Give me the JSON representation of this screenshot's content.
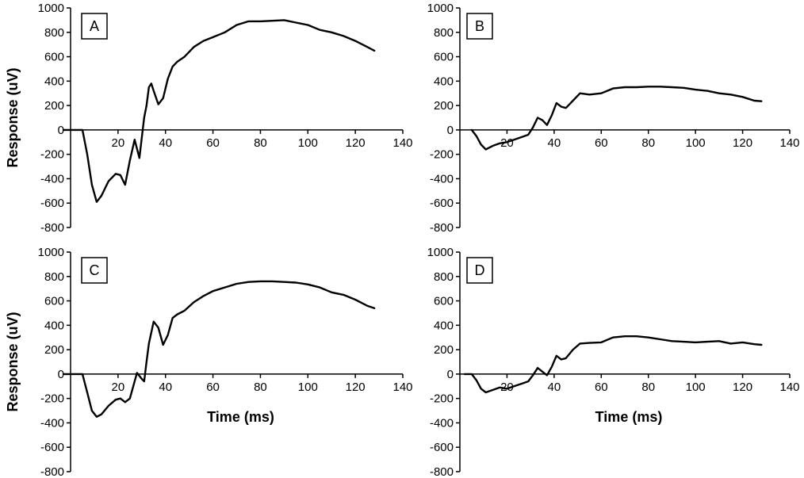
{
  "chart_data": [
    {
      "type": "line",
      "panel_label": "A",
      "ylabel": "Response (uV)",
      "xlabel": "",
      "xlim": [
        0,
        140
      ],
      "ylim": [
        -800,
        1000
      ],
      "xticks": [
        20,
        40,
        60,
        80,
        100,
        120,
        140
      ],
      "yticks": [
        -800,
        -600,
        -400,
        -200,
        0,
        200,
        400,
        600,
        800,
        1000
      ],
      "grid": false,
      "series": [
        {
          "x": [
            -3,
            2,
            5,
            7,
            9,
            11,
            13,
            16,
            19,
            21,
            23,
            25,
            27,
            29,
            31,
            32,
            33,
            34,
            35,
            37,
            39,
            41,
            43,
            45,
            48,
            52,
            56,
            60,
            65,
            70,
            75,
            80,
            85,
            90,
            95,
            100,
            105,
            110,
            115,
            120,
            125,
            128
          ],
          "y": [
            0,
            0,
            0,
            -200,
            -450,
            -590,
            -540,
            -420,
            -360,
            -370,
            -450,
            -250,
            -80,
            -230,
            100,
            200,
            350,
            380,
            320,
            210,
            260,
            420,
            520,
            560,
            600,
            680,
            730,
            760,
            800,
            860,
            890,
            890,
            895,
            900,
            880,
            860,
            820,
            800,
            770,
            730,
            680,
            650
          ]
        }
      ]
    },
    {
      "type": "line",
      "panel_label": "B",
      "ylabel": "",
      "xlabel": "",
      "xlim": [
        0,
        140
      ],
      "ylim": [
        -800,
        1000
      ],
      "xticks": [
        20,
        40,
        60,
        80,
        100,
        120,
        140
      ],
      "yticks": [
        -800,
        -600,
        -400,
        -200,
        0,
        200,
        400,
        600,
        800,
        1000
      ],
      "grid": false,
      "series": [
        {
          "x": [
            5,
            7,
            9,
            11,
            14,
            17,
            20,
            23,
            26,
            29,
            31,
            33,
            35,
            37,
            39,
            41,
            43,
            45,
            48,
            51,
            55,
            60,
            65,
            70,
            75,
            80,
            85,
            90,
            95,
            100,
            105,
            110,
            115,
            120,
            125,
            128
          ],
          "y": [
            0,
            -50,
            -120,
            -160,
            -130,
            -110,
            -100,
            -80,
            -60,
            -40,
            20,
            100,
            80,
            40,
            120,
            220,
            190,
            180,
            240,
            300,
            290,
            300,
            340,
            350,
            350,
            355,
            355,
            350,
            345,
            330,
            320,
            300,
            290,
            270,
            240,
            235
          ]
        }
      ]
    },
    {
      "type": "line",
      "panel_label": "C",
      "ylabel": "Response (uV)",
      "xlabel": "Time (ms)",
      "xlim": [
        0,
        140
      ],
      "ylim": [
        -800,
        1000
      ],
      "xticks": [
        20,
        40,
        60,
        80,
        100,
        120,
        140
      ],
      "yticks": [
        -800,
        -600,
        -400,
        -200,
        0,
        200,
        400,
        600,
        800,
        1000
      ],
      "grid": false,
      "series": [
        {
          "x": [
            -3,
            2,
            5,
            7,
            9,
            11,
            13,
            16,
            19,
            21,
            23,
            25,
            27,
            28,
            30,
            31,
            32,
            33,
            35,
            37,
            39,
            41,
            43,
            45,
            48,
            52,
            56,
            60,
            65,
            70,
            75,
            80,
            85,
            90,
            95,
            100,
            105,
            110,
            115,
            120,
            125,
            128
          ],
          "y": [
            0,
            0,
            0,
            -150,
            -300,
            -350,
            -330,
            -260,
            -210,
            -200,
            -230,
            -200,
            -60,
            10,
            -40,
            -60,
            100,
            250,
            430,
            380,
            240,
            320,
            460,
            490,
            520,
            590,
            640,
            680,
            710,
            740,
            755,
            760,
            760,
            755,
            750,
            735,
            710,
            670,
            650,
            610,
            560,
            540
          ]
        }
      ]
    },
    {
      "type": "line",
      "panel_label": "D",
      "ylabel": "",
      "xlabel": "Time (ms)",
      "xlim": [
        0,
        140
      ],
      "ylim": [
        -800,
        1000
      ],
      "xticks": [
        20,
        40,
        60,
        80,
        100,
        120,
        140
      ],
      "yticks": [
        -800,
        -600,
        -400,
        -200,
        0,
        200,
        400,
        600,
        800,
        1000
      ],
      "grid": false,
      "series": [
        {
          "x": [
            2,
            5,
            7,
            9,
            11,
            14,
            17,
            20,
            23,
            26,
            29,
            31,
            33,
            35,
            37,
            39,
            41,
            43,
            45,
            48,
            51,
            55,
            60,
            65,
            70,
            75,
            80,
            85,
            90,
            95,
            100,
            105,
            110,
            115,
            120,
            125,
            128
          ],
          "y": [
            0,
            0,
            -50,
            -120,
            -150,
            -130,
            -110,
            -120,
            -100,
            -80,
            -60,
            -10,
            50,
            20,
            -10,
            60,
            150,
            120,
            130,
            200,
            250,
            255,
            260,
            300,
            310,
            310,
            300,
            285,
            270,
            265,
            260,
            265,
            270,
            250,
            260,
            245,
            240
          ]
        }
      ]
    }
  ]
}
